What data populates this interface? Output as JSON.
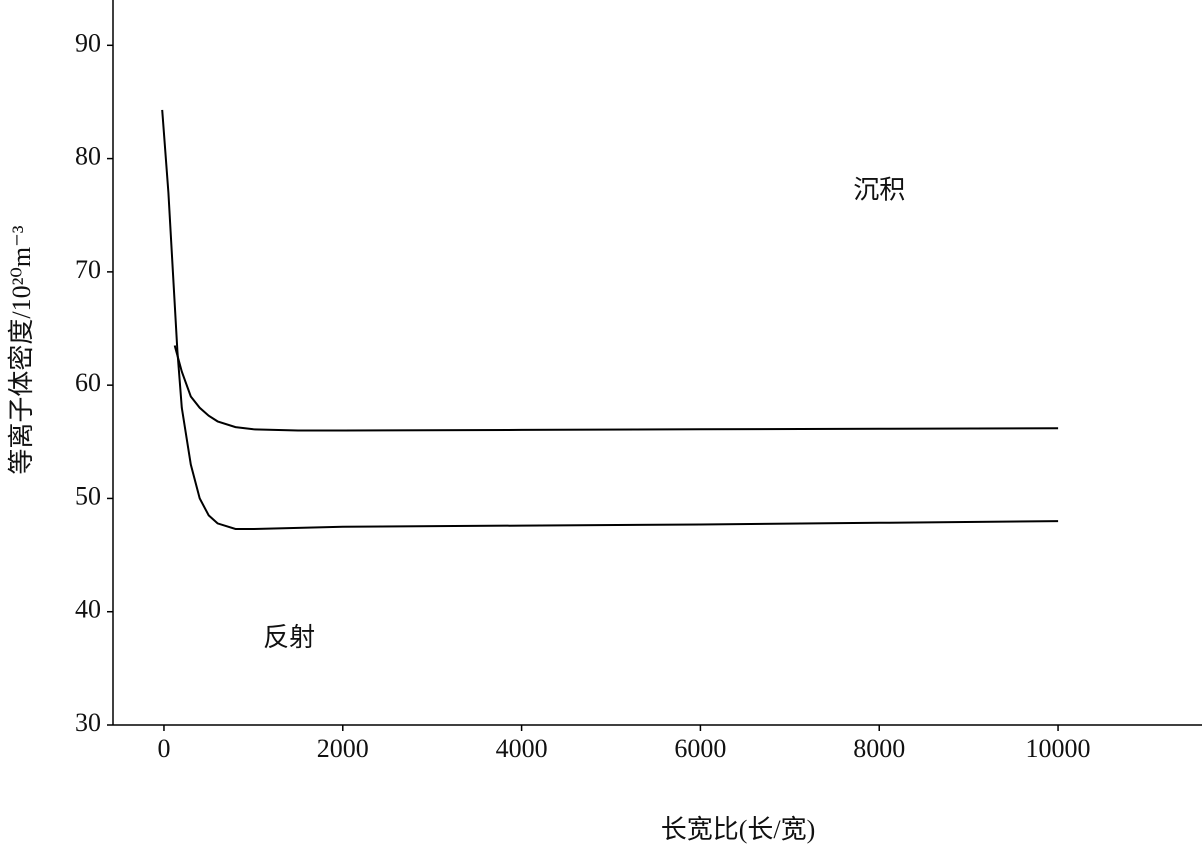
{
  "chart_data": {
    "type": "line",
    "xlabel": "长宽比(长/宽)",
    "ylabel": "等离子体密度/10²⁰m⁻³",
    "annotations": [
      {
        "text": "沉积",
        "x": 8000,
        "y": 77
      },
      {
        "text": "反射",
        "x": 1400,
        "y": 37.5
      }
    ],
    "xlim": [
      -570,
      11610
    ],
    "xticks": [
      0,
      2000,
      4000,
      6000,
      8000,
      10000
    ],
    "ylim": [
      30,
      94
    ],
    "yticks": [
      30,
      40,
      50,
      60,
      70,
      80,
      90
    ],
    "series": [
      {
        "color": "#000000",
        "x": [
          120,
          200,
          300,
          400,
          500,
          600,
          800,
          1000,
          1500,
          2000,
          4000,
          6000,
          8000,
          10000
        ],
        "values": [
          63.5,
          61.2,
          59.0,
          58.0,
          57.3,
          56.8,
          56.3,
          56.1,
          56.0,
          56.0,
          56.05,
          56.1,
          56.15,
          56.2
        ]
      },
      {
        "color": "#000000",
        "x": [
          -20,
          50,
          100,
          150,
          200,
          300,
          400,
          500,
          600,
          800,
          1000,
          2000,
          4000,
          6000,
          8000,
          10000
        ],
        "values": [
          84.3,
          77,
          70,
          63,
          58,
          53,
          50,
          48.5,
          47.8,
          47.3,
          47.3,
          47.5,
          47.6,
          47.7,
          47.85,
          48.0
        ]
      }
    ]
  }
}
